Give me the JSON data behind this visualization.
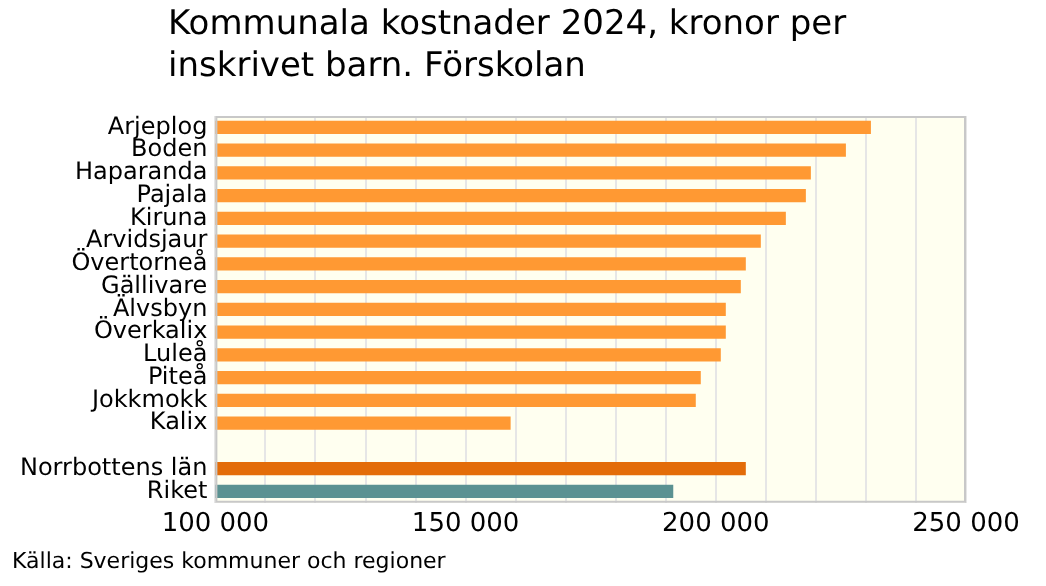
{
  "chart_data": {
    "type": "bar",
    "orientation": "horizontal",
    "title": "Kommunala kostnader 2024, kronor per inskrivet barn. Förskolan",
    "categories": [
      "Arjeplog",
      "Boden",
      "Haparanda",
      "Pajala",
      "Kiruna",
      "Arvidsjaur",
      "Övertorneå",
      "Gällivare",
      "Älvsbyn",
      "Överkalix",
      "Luleå",
      "Piteå",
      "Jokkmokk",
      "Kalix",
      null,
      "Norrbottens län",
      "Riket"
    ],
    "values": [
      231000,
      226000,
      219000,
      218000,
      214000,
      209000,
      206000,
      205000,
      202000,
      202000,
      201000,
      197000,
      196000,
      159000,
      null,
      206000,
      191500
    ],
    "colors": [
      "#ff9933",
      "#ff9933",
      "#ff9933",
      "#ff9933",
      "#ff9933",
      "#ff9933",
      "#ff9933",
      "#ff9933",
      "#ff9933",
      "#ff9933",
      "#ff9933",
      "#ff9933",
      "#ff9933",
      "#ff9933",
      "#ff9933",
      "#e36c09",
      "#5b9292"
    ],
    "xlim": [
      100000,
      250000
    ],
    "xticks": [
      {
        "value": 100000,
        "label": "100 000"
      },
      {
        "value": 110000,
        "label": null
      },
      {
        "value": 120000,
        "label": null
      },
      {
        "value": 130000,
        "label": null
      },
      {
        "value": 140000,
        "label": null
      },
      {
        "value": 150000,
        "label": "150 000"
      },
      {
        "value": 160000,
        "label": null
      },
      {
        "value": 170000,
        "label": null
      },
      {
        "value": 180000,
        "label": null
      },
      {
        "value": 190000,
        "label": null
      },
      {
        "value": 200000,
        "label": "200 000"
      },
      {
        "value": 210000,
        "label": null
      },
      {
        "value": 220000,
        "label": null
      },
      {
        "value": 230000,
        "label": null
      },
      {
        "value": 240000,
        "label": null
      },
      {
        "value": 250000,
        "label": "250 000"
      }
    ],
    "grid": "x",
    "legend": false,
    "annotations": [
      "Källa: Sveriges kommuner och regioner"
    ]
  }
}
